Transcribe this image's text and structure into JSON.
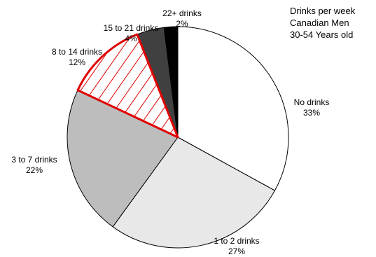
{
  "chart_data": {
    "type": "pie",
    "title_lines": [
      "Drinks per week",
      "Canadian Men",
      "30-54 Years old"
    ],
    "slices": [
      {
        "label": "No drinks",
        "percent_label": "33%",
        "value": 33,
        "color": "#ffffff",
        "pattern": "none",
        "stroke": "#000000"
      },
      {
        "label": "1 to 2 drinks",
        "percent_label": "27%",
        "value": 27,
        "color": "#e8e8e8",
        "pattern": "none",
        "stroke": "#000000"
      },
      {
        "label": "3 to 7 drinks",
        "percent_label": "22%",
        "value": 22,
        "color": "#bdbdbd",
        "pattern": "none",
        "stroke": "#000000"
      },
      {
        "label": "8  to 14 drinks",
        "percent_label": "12%",
        "value": 12,
        "color": "#ffffff",
        "pattern": "red-diagonal-hatch",
        "stroke": "#e00000"
      },
      {
        "label": "15  to 21 drinks",
        "percent_label": "4%",
        "value": 4,
        "color": "#404040",
        "pattern": "none",
        "stroke": "#000000"
      },
      {
        "label": "22+ drinks",
        "percent_label": "2%",
        "value": 2,
        "color": "#000000",
        "pattern": "none",
        "stroke": "#000000"
      }
    ],
    "start": "12 o'clock",
    "direction": "clockwise",
    "legend": "none"
  }
}
